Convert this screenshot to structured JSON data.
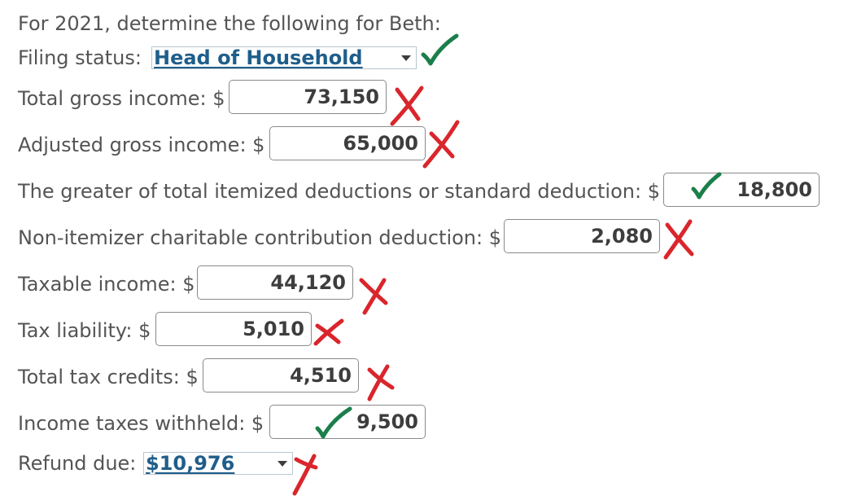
{
  "prompt": "For 2021, determine the following for Beth:",
  "filing_status": {
    "label": "Filing status:",
    "selected": "Head of Household",
    "result": "correct"
  },
  "fields": [
    {
      "label": "Total gross income: $",
      "value": "73,150",
      "result": "incorrect"
    },
    {
      "label": "Adjusted gross income: $",
      "value": "65,000",
      "result": "incorrect"
    },
    {
      "label": "The greater of total itemized deductions or standard deduction: $",
      "value": "18,800",
      "result": "correct"
    },
    {
      "label": "Non-itemizer charitable contribution deduction: $",
      "value": "2,080",
      "result": "incorrect"
    },
    {
      "label": "Taxable income: $",
      "value": "44,120",
      "result": "incorrect"
    },
    {
      "label": "Tax liability: $",
      "value": "5,010",
      "result": "incorrect"
    },
    {
      "label": "Total tax credits: $",
      "value": "4,510",
      "result": "incorrect"
    },
    {
      "label": "Income taxes withheld: $",
      "value": "9,500",
      "result": "correct"
    }
  ],
  "refund_due": {
    "label": "Refund due:",
    "selected": "$10,976",
    "result": "incorrect"
  },
  "colors": {
    "correct": "#1b7f4b",
    "incorrect": "#d9262c",
    "select_text": "#1f5e8a"
  }
}
